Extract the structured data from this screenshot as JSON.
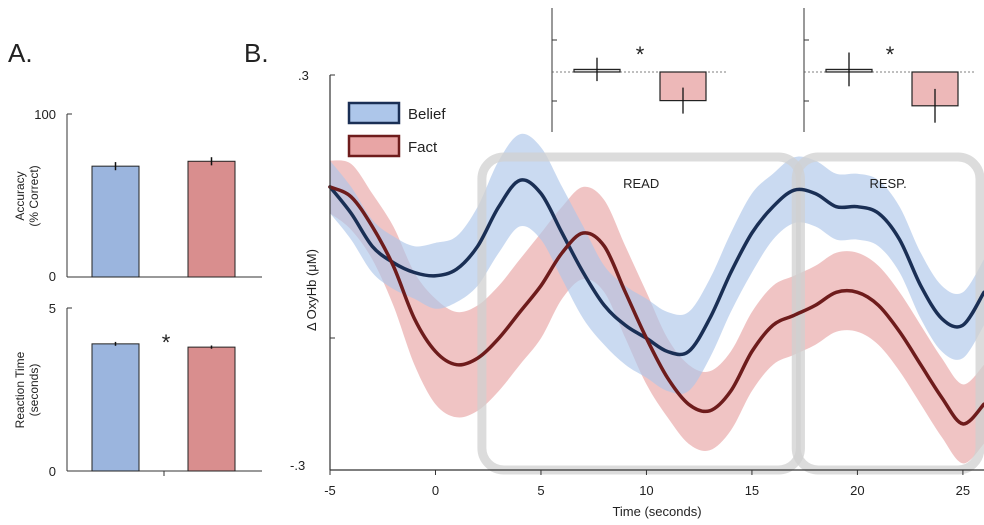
{
  "panel_a_label": "A.",
  "panel_b_label": "B.",
  "colors": {
    "belief_bar": "#9bb5de",
    "fact_bar": "#d98e8e",
    "belief_line": "#1a2f55",
    "fact_line": "#6e1c1c",
    "belief_band": "#adc6ea",
    "fact_band": "#e8a5a5",
    "inset_fact_bar": "#edb8b8",
    "epoch_box": "#d0d0d0"
  },
  "chart_data": [
    {
      "type": "bar",
      "panel": "A",
      "ylabel_line1": "Accuracy",
      "ylabel_line2": "(% Correct)",
      "ylim": [
        0,
        100
      ],
      "yticks": [
        "0",
        "100"
      ],
      "categories": [
        "Belief",
        "Fact"
      ],
      "values": [
        68,
        71
      ],
      "errors": [
        2.5,
        2.5
      ],
      "significance": ""
    },
    {
      "type": "bar",
      "panel": "A",
      "ylabel_line1": "Reaction Time",
      "ylabel_line2": "(seconds)",
      "ylim": [
        0,
        5
      ],
      "yticks": [
        "0",
        "5"
      ],
      "categories": [
        "Belief",
        "Fact"
      ],
      "values": [
        3.9,
        3.8
      ],
      "errors": [
        0.06,
        0.05
      ],
      "significance": "*"
    },
    {
      "type": "bar",
      "panel": "B-inset-read",
      "categories": [
        "Belief",
        "Fact"
      ],
      "values": [
        0.02,
        -0.22
      ],
      "errors": [
        0.09,
        0.1
      ],
      "significance": "*"
    },
    {
      "type": "bar",
      "panel": "B-inset-resp",
      "categories": [
        "Belief",
        "Fact"
      ],
      "values": [
        0.02,
        -0.26
      ],
      "errors": [
        0.13,
        0.13
      ],
      "significance": "*"
    },
    {
      "type": "line",
      "panel": "B",
      "xlabel": "Time (seconds)",
      "ylabel": "Δ OxyHb (μM)",
      "xlim": [
        -5,
        26
      ],
      "ylim": [
        -0.3,
        0.3
      ],
      "xticks": [
        "-5",
        "0",
        "5",
        "10",
        "15",
        "20",
        "25"
      ],
      "yticks": [
        ".3",
        "-.3"
      ],
      "x": [
        -5,
        -4,
        -3,
        -2,
        -1,
        0,
        1,
        2,
        3,
        4,
        5,
        6,
        7,
        8,
        9,
        10,
        11,
        12,
        13,
        14,
        15,
        16,
        17,
        18,
        19,
        20,
        21,
        22,
        23,
        24,
        25,
        26
      ],
      "series": [
        {
          "name": "Belief",
          "values": [
            0.13,
            0.09,
            0.04,
            0.015,
            0.0,
            -0.005,
            0.005,
            0.04,
            0.1,
            0.14,
            0.12,
            0.06,
            0.0,
            -0.05,
            -0.08,
            -0.1,
            -0.12,
            -0.12,
            -0.07,
            0.0,
            0.06,
            0.1,
            0.125,
            0.12,
            0.1,
            0.1,
            0.09,
            0.05,
            -0.02,
            -0.07,
            -0.08,
            -0.03
          ],
          "band": [
            0.04,
            0.04,
            0.04,
            0.04,
            0.04,
            0.05,
            0.05,
            0.06,
            0.07,
            0.07,
            0.07,
            0.07,
            0.07,
            0.06,
            0.06,
            0.06,
            0.06,
            0.06,
            0.06,
            0.06,
            0.06,
            0.05,
            0.05,
            0.05,
            0.05,
            0.05,
            0.05,
            0.05,
            0.05,
            0.05,
            0.05,
            0.05
          ]
        },
        {
          "name": "Fact",
          "values": [
            0.13,
            0.115,
            0.07,
            0.01,
            -0.07,
            -0.12,
            -0.14,
            -0.13,
            -0.1,
            -0.06,
            -0.02,
            0.03,
            0.06,
            0.04,
            -0.03,
            -0.1,
            -0.16,
            -0.2,
            -0.21,
            -0.18,
            -0.12,
            -0.08,
            -0.065,
            -0.05,
            -0.03,
            -0.03,
            -0.05,
            -0.09,
            -0.14,
            -0.19,
            -0.23,
            -0.2
          ],
          "band": [
            0.04,
            0.05,
            0.05,
            0.06,
            0.07,
            0.08,
            0.08,
            0.08,
            0.08,
            0.08,
            0.08,
            0.07,
            0.07,
            0.07,
            0.07,
            0.07,
            0.06,
            0.06,
            0.06,
            0.06,
            0.06,
            0.06,
            0.06,
            0.06,
            0.06,
            0.06,
            0.06,
            0.06,
            0.06,
            0.06,
            0.06,
            0.06
          ]
        }
      ],
      "epochs": [
        {
          "label": "READ",
          "start": 2.2,
          "end": 17.3
        },
        {
          "label": "RESP.",
          "start": 17.1,
          "end": 27
        }
      ],
      "legend": "top-left"
    }
  ]
}
